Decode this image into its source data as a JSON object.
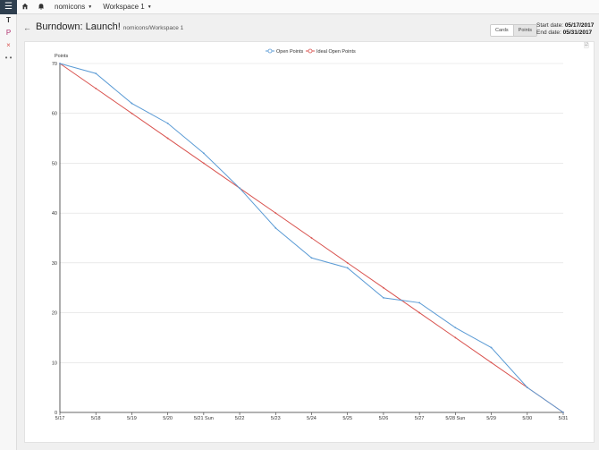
{
  "topbar": {
    "home_icon": "home-icon",
    "bell_icon": "bell-icon",
    "org": "nomicons",
    "workspace": "Workspace 1"
  },
  "rail": {
    "menu_icon": "hamburger-icon",
    "items": [
      "T",
      "P",
      "×",
      "• •"
    ]
  },
  "header": {
    "title": "Burndown: Launch!",
    "subtitle": "nomicons/Workspace 1",
    "toggle": [
      "Cards",
      "Points"
    ],
    "active_toggle": "Points",
    "start_label": "Start date:",
    "start_value": "05/17/2017",
    "end_label": "End date:",
    "end_value": "05/31/2017"
  },
  "chart_data": {
    "type": "line",
    "ylabel": "Points",
    "ylim": [
      0,
      70
    ],
    "yticks": [
      0,
      10,
      20,
      30,
      40,
      50,
      60,
      70
    ],
    "x_tick_labels": [
      "5/17",
      "5/18",
      "5/19",
      "5/20",
      "5/21 Sun",
      "5/22",
      "5/23",
      "5/24",
      "5/25",
      "5/26",
      "5/27",
      "5/28 Sun",
      "5/29",
      "5/30",
      "5/31"
    ],
    "grid": true,
    "legend_position": "top-center",
    "series": [
      {
        "name": "Open Points",
        "color": "#5b9bd5",
        "points": [
          [
            0,
            70
          ],
          [
            1,
            68
          ],
          [
            2,
            62
          ],
          [
            3,
            58
          ],
          [
            4,
            52
          ],
          [
            5,
            45
          ],
          [
            6,
            37
          ],
          [
            7,
            31
          ],
          [
            8,
            29
          ],
          [
            9,
            23
          ],
          [
            9.5,
            22.5
          ],
          [
            10,
            22
          ],
          [
            11,
            17
          ],
          [
            12,
            13
          ],
          [
            13,
            5
          ],
          [
            14,
            0
          ]
        ]
      },
      {
        "name": "Ideal Open Points",
        "color": "#d9534f",
        "points": [
          [
            0,
            70
          ],
          [
            1,
            65
          ],
          [
            2,
            60
          ],
          [
            3,
            55
          ],
          [
            4,
            50
          ],
          [
            5,
            45
          ],
          [
            6,
            40
          ],
          [
            7,
            35
          ],
          [
            8,
            30
          ],
          [
            9,
            25
          ],
          [
            10,
            20
          ],
          [
            11,
            15
          ],
          [
            12,
            10
          ],
          [
            13,
            5
          ],
          [
            14,
            0
          ]
        ]
      }
    ]
  }
}
